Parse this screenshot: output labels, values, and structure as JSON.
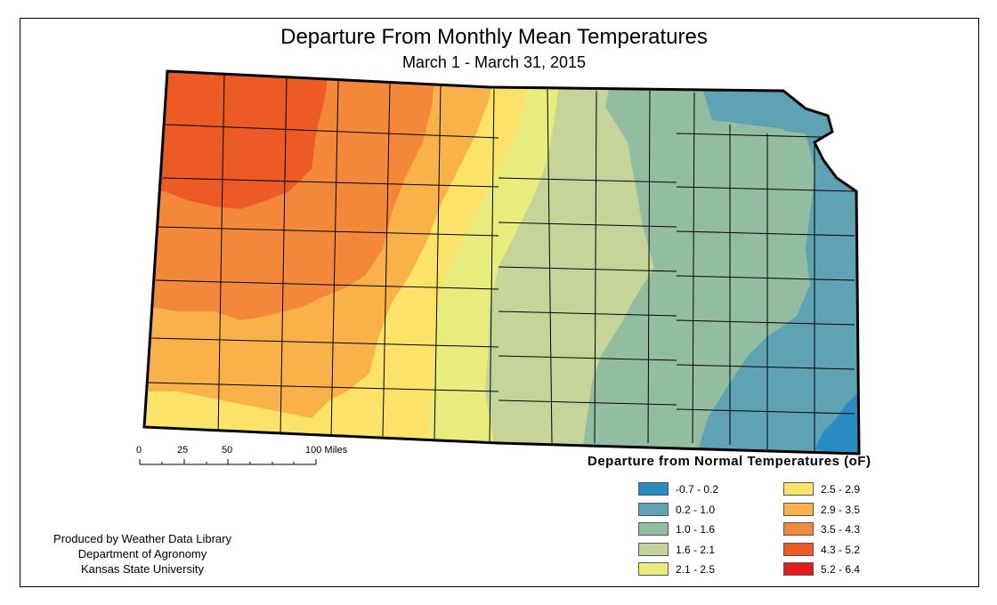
{
  "title": "Departure From Monthly Mean Temperatures",
  "subtitle": "March 1 - March 31, 2015",
  "legend": {
    "title": "Departure from Normal Temperatures (oF)",
    "items": [
      {
        "label": "-0.7 - 0.2",
        "color": "#2b8cc4"
      },
      {
        "label": "0.2 - 1.0",
        "color": "#5fa2b4"
      },
      {
        "label": "1.0 - 1.6",
        "color": "#93bda0"
      },
      {
        "label": "1.6 - 2.1",
        "color": "#c5d59a"
      },
      {
        "label": "2.1 - 2.5",
        "color": "#e8ec7c"
      },
      {
        "label": "2.5 - 2.9",
        "color": "#fbe36a"
      },
      {
        "label": "2.9 - 3.5",
        "color": "#f9b24a"
      },
      {
        "label": "3.5 - 4.3",
        "color": "#f4883a"
      },
      {
        "label": "4.3 - 5.2",
        "color": "#ec5a26"
      },
      {
        "label": "5.2 - 6.4",
        "color": "#e41a1c"
      }
    ]
  },
  "scale_bar": {
    "labels": [
      "0",
      "25",
      "50",
      "100 Miles"
    ]
  },
  "credits": [
    "Produced by Weather Data Library",
    "Department of Agronomy",
    "Kansas State University"
  ]
}
